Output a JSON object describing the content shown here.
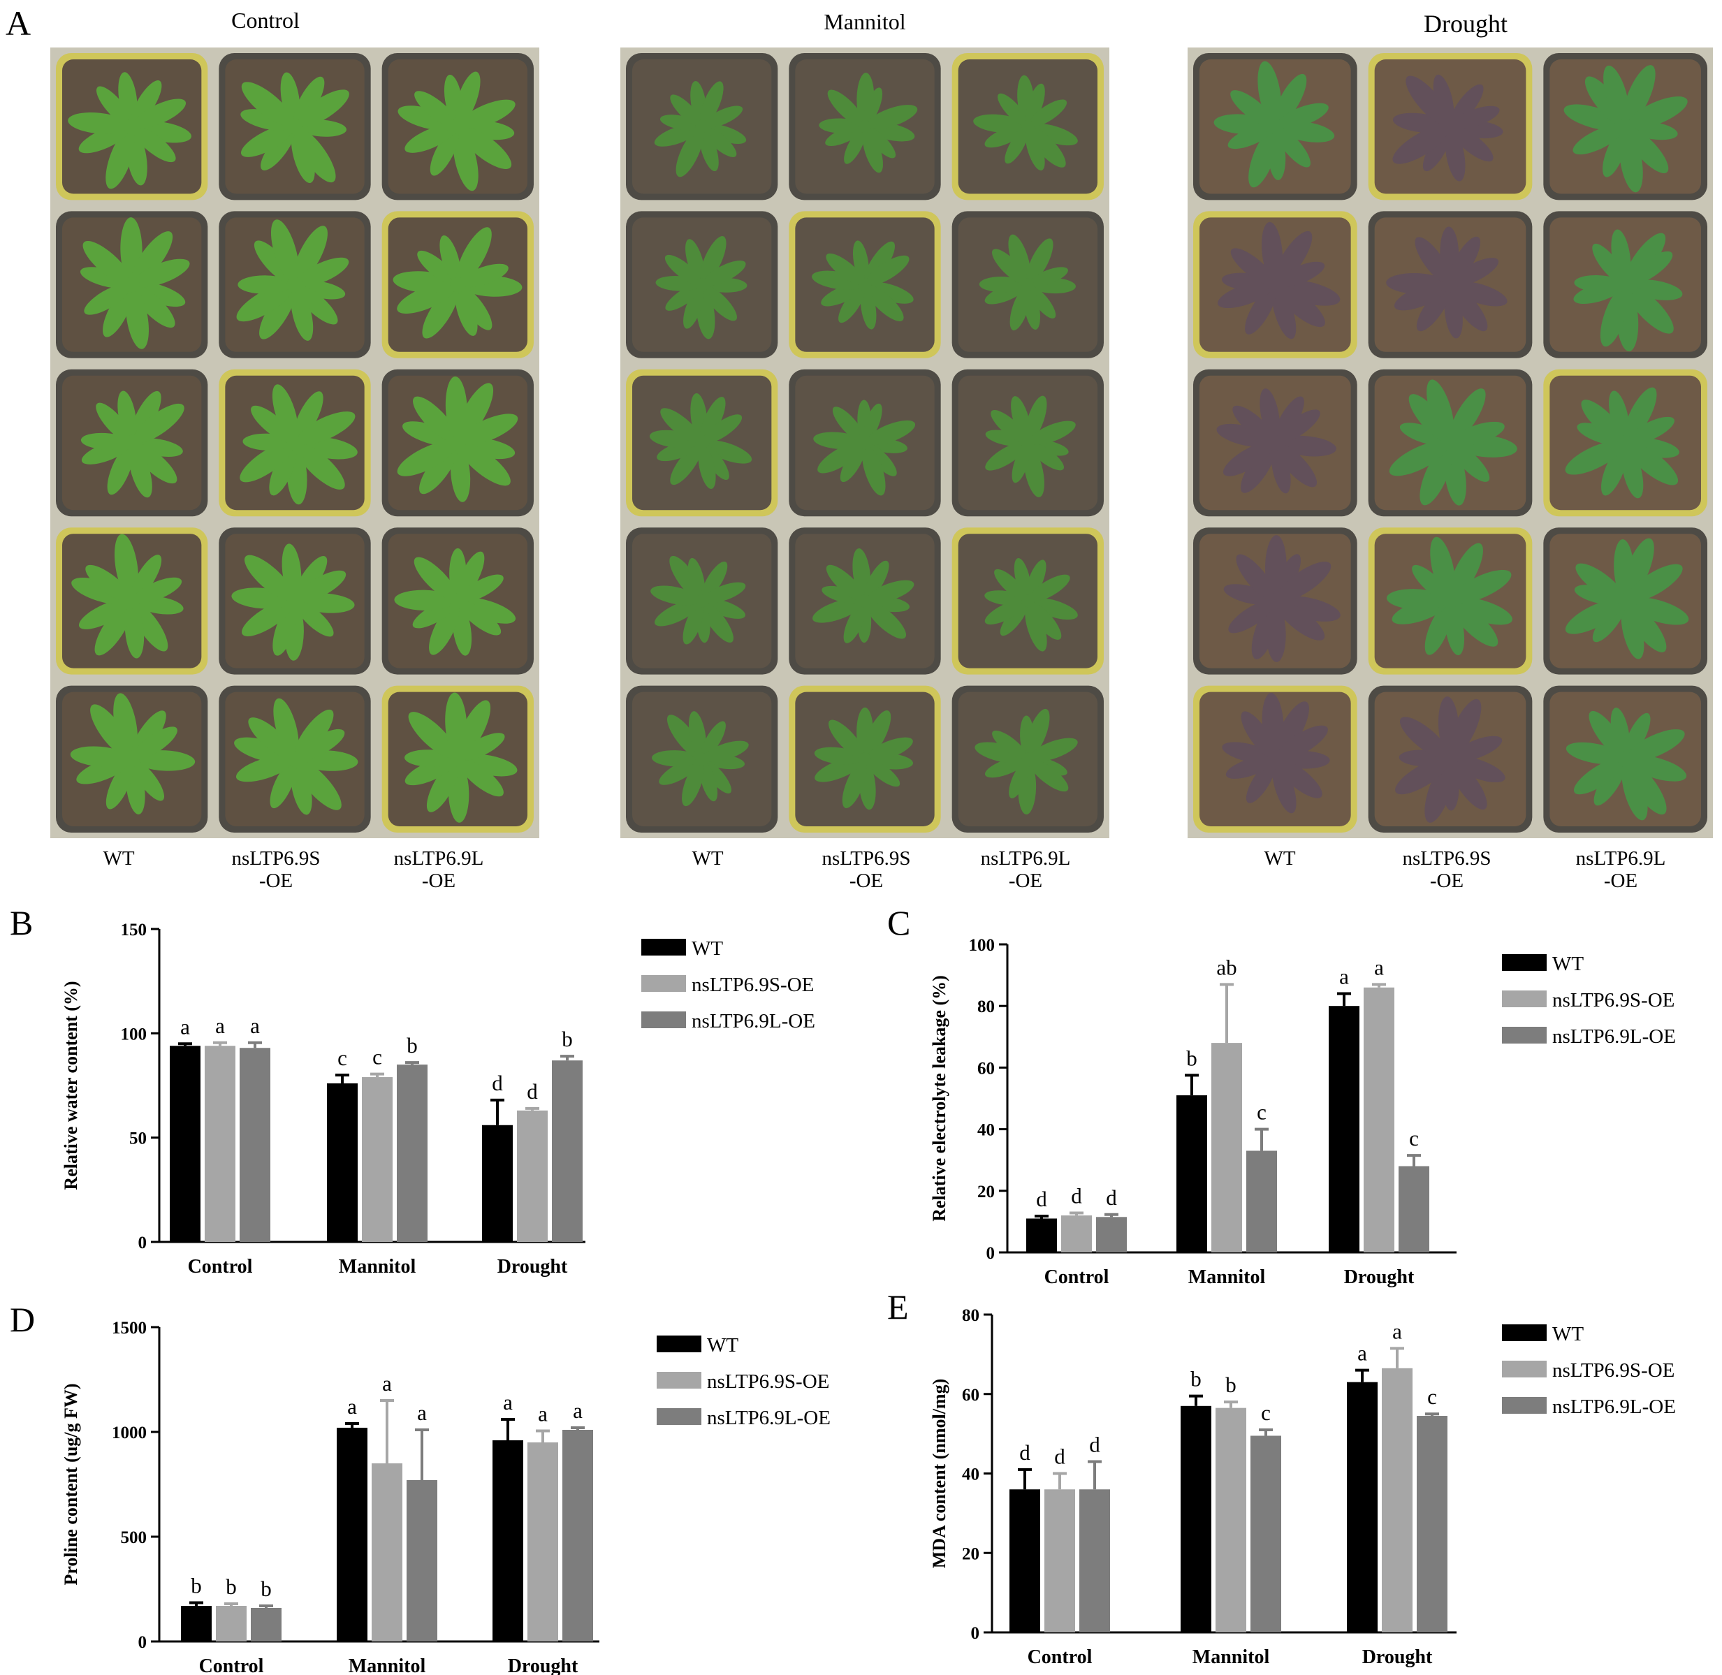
{
  "panel_a": {
    "letter": "A",
    "conditions": [
      "Control",
      "Mannitol",
      "Drought"
    ],
    "genotype_labels": [
      [
        "WT"
      ],
      [
        "nsLTP6.9S",
        "-OE"
      ],
      [
        "nsLTP6.9L",
        "-OE"
      ]
    ],
    "colors": {
      "tray_frame": "#c9c6b6",
      "pot_rim_yellow": "#cfc65a",
      "pot_rim_dark": "#4e4b45",
      "soil_control": "#5f5142",
      "soil_mannitol": "#5d5347",
      "soil_drought": "#6e5a47",
      "leaf_control": "#5aa33c",
      "leaf_mannitol": "#4e8b3a",
      "leaf_drought_healthy": "#4a9046",
      "leaf_drought_stressed": "#62505a"
    }
  },
  "legend": {
    "entries": [
      "WT",
      "nsLTP6.9S-OE",
      "nsLTP6.9L-OE"
    ],
    "colors": [
      "#000000",
      "#a6a6a6",
      "#7d7d7d"
    ]
  },
  "chart_data": [
    {
      "panel": "B",
      "type": "bar",
      "categories": [
        "Control",
        "Mannitol",
        "Drought"
      ],
      "ylabel": "Relative water content (%)",
      "ylim": [
        0,
        150
      ],
      "yticks": [
        0,
        50,
        100,
        150
      ],
      "series": [
        {
          "name": "WT",
          "values": [
            94,
            76,
            56
          ],
          "errors": [
            1,
            4,
            12
          ]
        },
        {
          "name": "nsLTP6.9S-OE",
          "values": [
            94,
            79,
            63
          ],
          "errors": [
            1.5,
            1.5,
            1
          ]
        },
        {
          "name": "nsLTP6.9L-OE",
          "values": [
            93,
            85,
            87
          ],
          "errors": [
            2.5,
            1,
            2
          ]
        }
      ],
      "significance": [
        [
          "a",
          "c",
          "d"
        ],
        [
          "a",
          "c",
          "d"
        ],
        [
          "a",
          "b",
          "b"
        ]
      ]
    },
    {
      "panel": "C",
      "type": "bar",
      "categories": [
        "Control",
        "Mannitol",
        "Drought"
      ],
      "ylabel": "Relative electrolyte leakage (%)",
      "ylim": [
        0,
        100
      ],
      "yticks": [
        0,
        20,
        40,
        60,
        80,
        100
      ],
      "series": [
        {
          "name": "WT",
          "values": [
            11,
            51,
            80
          ],
          "errors": [
            0.8,
            6.5,
            4
          ]
        },
        {
          "name": "nsLTP6.9S-OE",
          "values": [
            12,
            68,
            86
          ],
          "errors": [
            0.8,
            19,
            1
          ]
        },
        {
          "name": "nsLTP6.9L-OE",
          "values": [
            11.5,
            33,
            28
          ],
          "errors": [
            0.8,
            7,
            3.5
          ]
        }
      ],
      "significance": [
        [
          "d",
          "b",
          "a"
        ],
        [
          "d",
          "ab",
          "a"
        ],
        [
          "d",
          "c",
          "c"
        ]
      ]
    },
    {
      "panel": "D",
      "type": "bar",
      "categories": [
        "Control",
        "Mannitol",
        "Drought"
      ],
      "ylabel": "Proline content (ug/g FW)",
      "ylim": [
        0,
        1500
      ],
      "yticks": [
        0,
        500,
        1000,
        1500
      ],
      "series": [
        {
          "name": "WT",
          "values": [
            170,
            1020,
            960
          ],
          "errors": [
            15,
            20,
            100
          ]
        },
        {
          "name": "nsLTP6.9S-OE",
          "values": [
            170,
            850,
            950
          ],
          "errors": [
            10,
            300,
            55
          ]
        },
        {
          "name": "nsLTP6.9L-OE",
          "values": [
            160,
            770,
            1010
          ],
          "errors": [
            10,
            240,
            10
          ]
        }
      ],
      "significance": [
        [
          "b",
          "a",
          "a"
        ],
        [
          "b",
          "a",
          "a"
        ],
        [
          "b",
          "a",
          "a"
        ]
      ]
    },
    {
      "panel": "E",
      "type": "bar",
      "categories": [
        "Control",
        "Mannitol",
        "Drought"
      ],
      "ylabel": "MDA content (nmol/mg)",
      "ylim": [
        0,
        80
      ],
      "yticks": [
        0,
        20,
        40,
        60,
        80
      ],
      "series": [
        {
          "name": "WT",
          "values": [
            36,
            57,
            63
          ],
          "errors": [
            5,
            2.5,
            3
          ]
        },
        {
          "name": "nsLTP6.9S-OE",
          "values": [
            36,
            56.5,
            66.5
          ],
          "errors": [
            4,
            1.5,
            5
          ]
        },
        {
          "name": "nsLTP6.9L-OE",
          "values": [
            36,
            49.5,
            54.5
          ],
          "errors": [
            7,
            1.5,
            0.5
          ]
        }
      ],
      "significance": [
        [
          "d",
          "b",
          "a"
        ],
        [
          "d",
          "b",
          "a"
        ],
        [
          "d",
          "c",
          "c"
        ]
      ]
    }
  ]
}
